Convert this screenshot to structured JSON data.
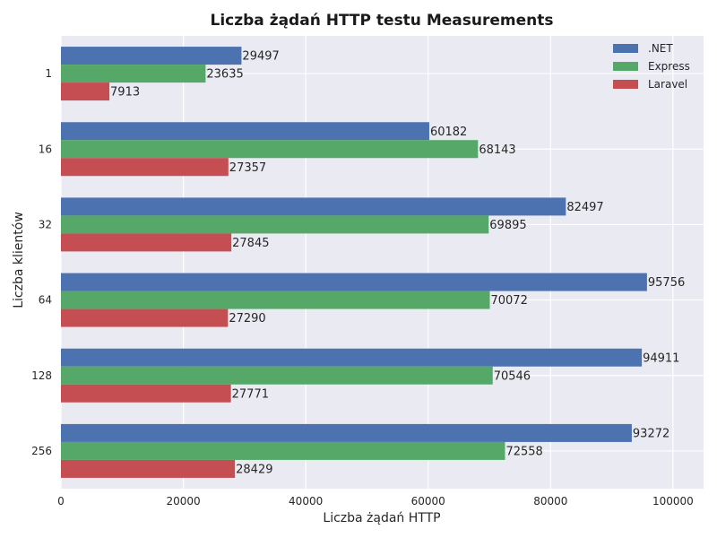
{
  "chart_data": {
    "type": "bar",
    "orientation": "horizontal",
    "title": "Liczba żądań HTTP testu Measurements",
    "xlabel": "Liczba żądań HTTP",
    "ylabel": "Liczba klientów",
    "categories": [
      "1",
      "16",
      "32",
      "64",
      "128",
      "256"
    ],
    "series": [
      {
        "name": ".NET",
        "color": "#4c72b0",
        "values": [
          29497,
          60182,
          82497,
          95756,
          94911,
          93272
        ]
      },
      {
        "name": "Express",
        "color": "#55a868",
        "values": [
          23635,
          68143,
          69895,
          70072,
          70546,
          72558
        ]
      },
      {
        "name": "Laravel",
        "color": "#c44e52",
        "values": [
          7913,
          27357,
          27845,
          27290,
          27771,
          28429
        ]
      }
    ],
    "xlim": [
      0,
      105000
    ],
    "xticks": [
      0,
      20000,
      40000,
      60000,
      80000,
      100000
    ],
    "grid": true,
    "legend_position": "top-right",
    "background_color": "#eaeaf2"
  }
}
